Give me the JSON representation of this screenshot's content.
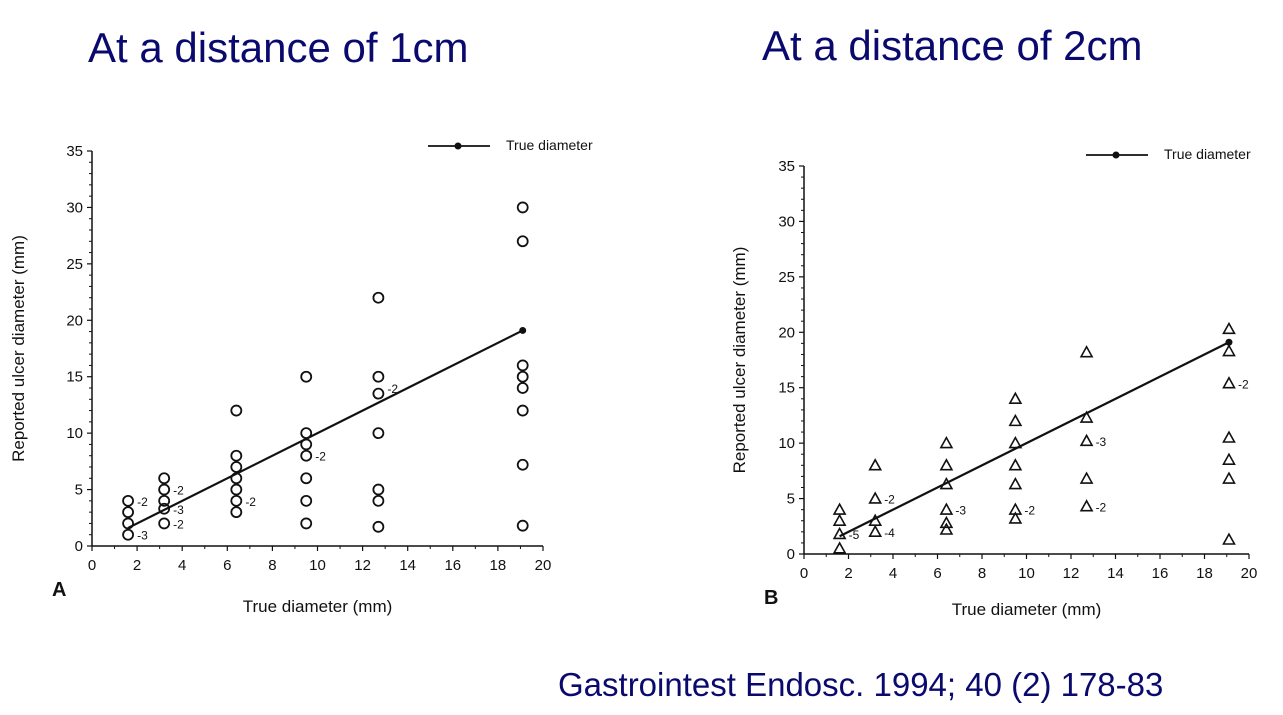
{
  "titles": {
    "left": "At a distance of 1cm",
    "right": "At a distance of 2cm"
  },
  "citation": "Gastrointest Endosc. 1994; 40 (2) 178-83",
  "colors": {
    "title": "#0a0a6e",
    "ink": "#111111"
  },
  "chart_data": [
    {
      "type": "scatter",
      "panel_label": "A",
      "marker": "circle",
      "xlabel": "True diameter (mm)",
      "ylabel": "Reported ulcer diameter (mm)",
      "xlim": [
        0,
        20
      ],
      "ylim": [
        0,
        35
      ],
      "xticks": [
        "0",
        "2",
        "4",
        "6",
        "8",
        "10",
        "12",
        "14",
        "16",
        "18",
        "20"
      ],
      "yticks": [
        "0",
        "5",
        "10",
        "15",
        "20",
        "25",
        "30",
        "35"
      ],
      "legend": {
        "label": "True diameter",
        "placement": "top-right"
      },
      "reference_line": {
        "name": "True diameter",
        "x": [
          1.6,
          19.1
        ],
        "y": [
          1.6,
          19.1
        ]
      },
      "points": [
        {
          "x": 1.6,
          "y": 1
        },
        {
          "x": 1.6,
          "y": 2
        },
        {
          "x": 1.6,
          "y": 3
        },
        {
          "x": 1.6,
          "y": 4
        },
        {
          "x": 3.2,
          "y": 2
        },
        {
          "x": 3.2,
          "y": 3.3
        },
        {
          "x": 3.2,
          "y": 4
        },
        {
          "x": 3.2,
          "y": 5
        },
        {
          "x": 3.2,
          "y": 6
        },
        {
          "x": 6.4,
          "y": 3
        },
        {
          "x": 6.4,
          "y": 4
        },
        {
          "x": 6.4,
          "y": 5
        },
        {
          "x": 6.4,
          "y": 6
        },
        {
          "x": 6.4,
          "y": 7
        },
        {
          "x": 6.4,
          "y": 8
        },
        {
          "x": 6.4,
          "y": 12
        },
        {
          "x": 9.5,
          "y": 2
        },
        {
          "x": 9.5,
          "y": 4
        },
        {
          "x": 9.5,
          "y": 6
        },
        {
          "x": 9.5,
          "y": 8
        },
        {
          "x": 9.5,
          "y": 9
        },
        {
          "x": 9.5,
          "y": 10
        },
        {
          "x": 9.5,
          "y": 15
        },
        {
          "x": 12.7,
          "y": 1.7
        },
        {
          "x": 12.7,
          "y": 4
        },
        {
          "x": 12.7,
          "y": 5
        },
        {
          "x": 12.7,
          "y": 10
        },
        {
          "x": 12.7,
          "y": 13.5
        },
        {
          "x": 12.7,
          "y": 15
        },
        {
          "x": 12.7,
          "y": 22
        },
        {
          "x": 19.1,
          "y": 1.8
        },
        {
          "x": 19.1,
          "y": 7.2
        },
        {
          "x": 19.1,
          "y": 12
        },
        {
          "x": 19.1,
          "y": 14
        },
        {
          "x": 19.1,
          "y": 15
        },
        {
          "x": 19.1,
          "y": 16
        },
        {
          "x": 19.1,
          "y": 27
        },
        {
          "x": 19.1,
          "y": 30
        }
      ],
      "annotations": [
        {
          "x": 1.6,
          "y": 4,
          "text": "-2"
        },
        {
          "x": 1.6,
          "y": 1,
          "text": "-3"
        },
        {
          "x": 3.2,
          "y": 5,
          "text": "-2"
        },
        {
          "x": 3.2,
          "y": 3.3,
          "text": "-3"
        },
        {
          "x": 3.2,
          "y": 2,
          "text": "-2"
        },
        {
          "x": 6.4,
          "y": 4,
          "text": "-2"
        },
        {
          "x": 9.5,
          "y": 8,
          "text": "-2"
        },
        {
          "x": 12.7,
          "y": 14,
          "text": "-2"
        }
      ]
    },
    {
      "type": "scatter",
      "panel_label": "B",
      "marker": "triangle",
      "xlabel": "True diameter (mm)",
      "ylabel": "Reported ulcer diameter (mm)",
      "xlim": [
        0,
        20
      ],
      "ylim": [
        0,
        35
      ],
      "xticks": [
        "0",
        "2",
        "4",
        "6",
        "8",
        "10",
        "12",
        "14",
        "16",
        "18",
        "20"
      ],
      "yticks": [
        "0",
        "5",
        "10",
        "15",
        "20",
        "25",
        "30",
        "35"
      ],
      "legend": {
        "label": "True diameter",
        "placement": "top-right"
      },
      "reference_line": {
        "name": "True diameter",
        "x": [
          1.6,
          19.1
        ],
        "y": [
          1.6,
          19.1
        ]
      },
      "points": [
        {
          "x": 1.6,
          "y": 0.5
        },
        {
          "x": 1.6,
          "y": 1.8
        },
        {
          "x": 1.6,
          "y": 3
        },
        {
          "x": 1.6,
          "y": 4
        },
        {
          "x": 3.2,
          "y": 2
        },
        {
          "x": 3.2,
          "y": 3
        },
        {
          "x": 3.2,
          "y": 5
        },
        {
          "x": 3.2,
          "y": 8
        },
        {
          "x": 6.4,
          "y": 2.2
        },
        {
          "x": 6.4,
          "y": 2.8
        },
        {
          "x": 6.4,
          "y": 4
        },
        {
          "x": 6.4,
          "y": 6.3
        },
        {
          "x": 6.4,
          "y": 8
        },
        {
          "x": 6.4,
          "y": 10
        },
        {
          "x": 9.5,
          "y": 3.2
        },
        {
          "x": 9.5,
          "y": 4
        },
        {
          "x": 9.5,
          "y": 6.3
        },
        {
          "x": 9.5,
          "y": 8
        },
        {
          "x": 9.5,
          "y": 10
        },
        {
          "x": 9.5,
          "y": 12
        },
        {
          "x": 9.5,
          "y": 14
        },
        {
          "x": 12.7,
          "y": 4.3
        },
        {
          "x": 12.7,
          "y": 6.8
        },
        {
          "x": 12.7,
          "y": 10.2
        },
        {
          "x": 12.7,
          "y": 12.3
        },
        {
          "x": 12.7,
          "y": 18.2
        },
        {
          "x": 19.1,
          "y": 1.3
        },
        {
          "x": 19.1,
          "y": 6.8
        },
        {
          "x": 19.1,
          "y": 8.5
        },
        {
          "x": 19.1,
          "y": 10.5
        },
        {
          "x": 19.1,
          "y": 15.4
        },
        {
          "x": 19.1,
          "y": 18.3
        },
        {
          "x": 19.1,
          "y": 20.3
        }
      ],
      "annotations": [
        {
          "x": 1.6,
          "y": 1.8,
          "text": "-5"
        },
        {
          "x": 3.2,
          "y": 5,
          "text": "-2"
        },
        {
          "x": 3.2,
          "y": 2,
          "text": "-4"
        },
        {
          "x": 6.4,
          "y": 4,
          "text": "-3"
        },
        {
          "x": 9.5,
          "y": 4,
          "text": "-2"
        },
        {
          "x": 12.7,
          "y": 10.2,
          "text": "-3"
        },
        {
          "x": 12.7,
          "y": 4.3,
          "text": "-2"
        },
        {
          "x": 19.1,
          "y": 15.4,
          "text": "-2"
        }
      ]
    }
  ]
}
